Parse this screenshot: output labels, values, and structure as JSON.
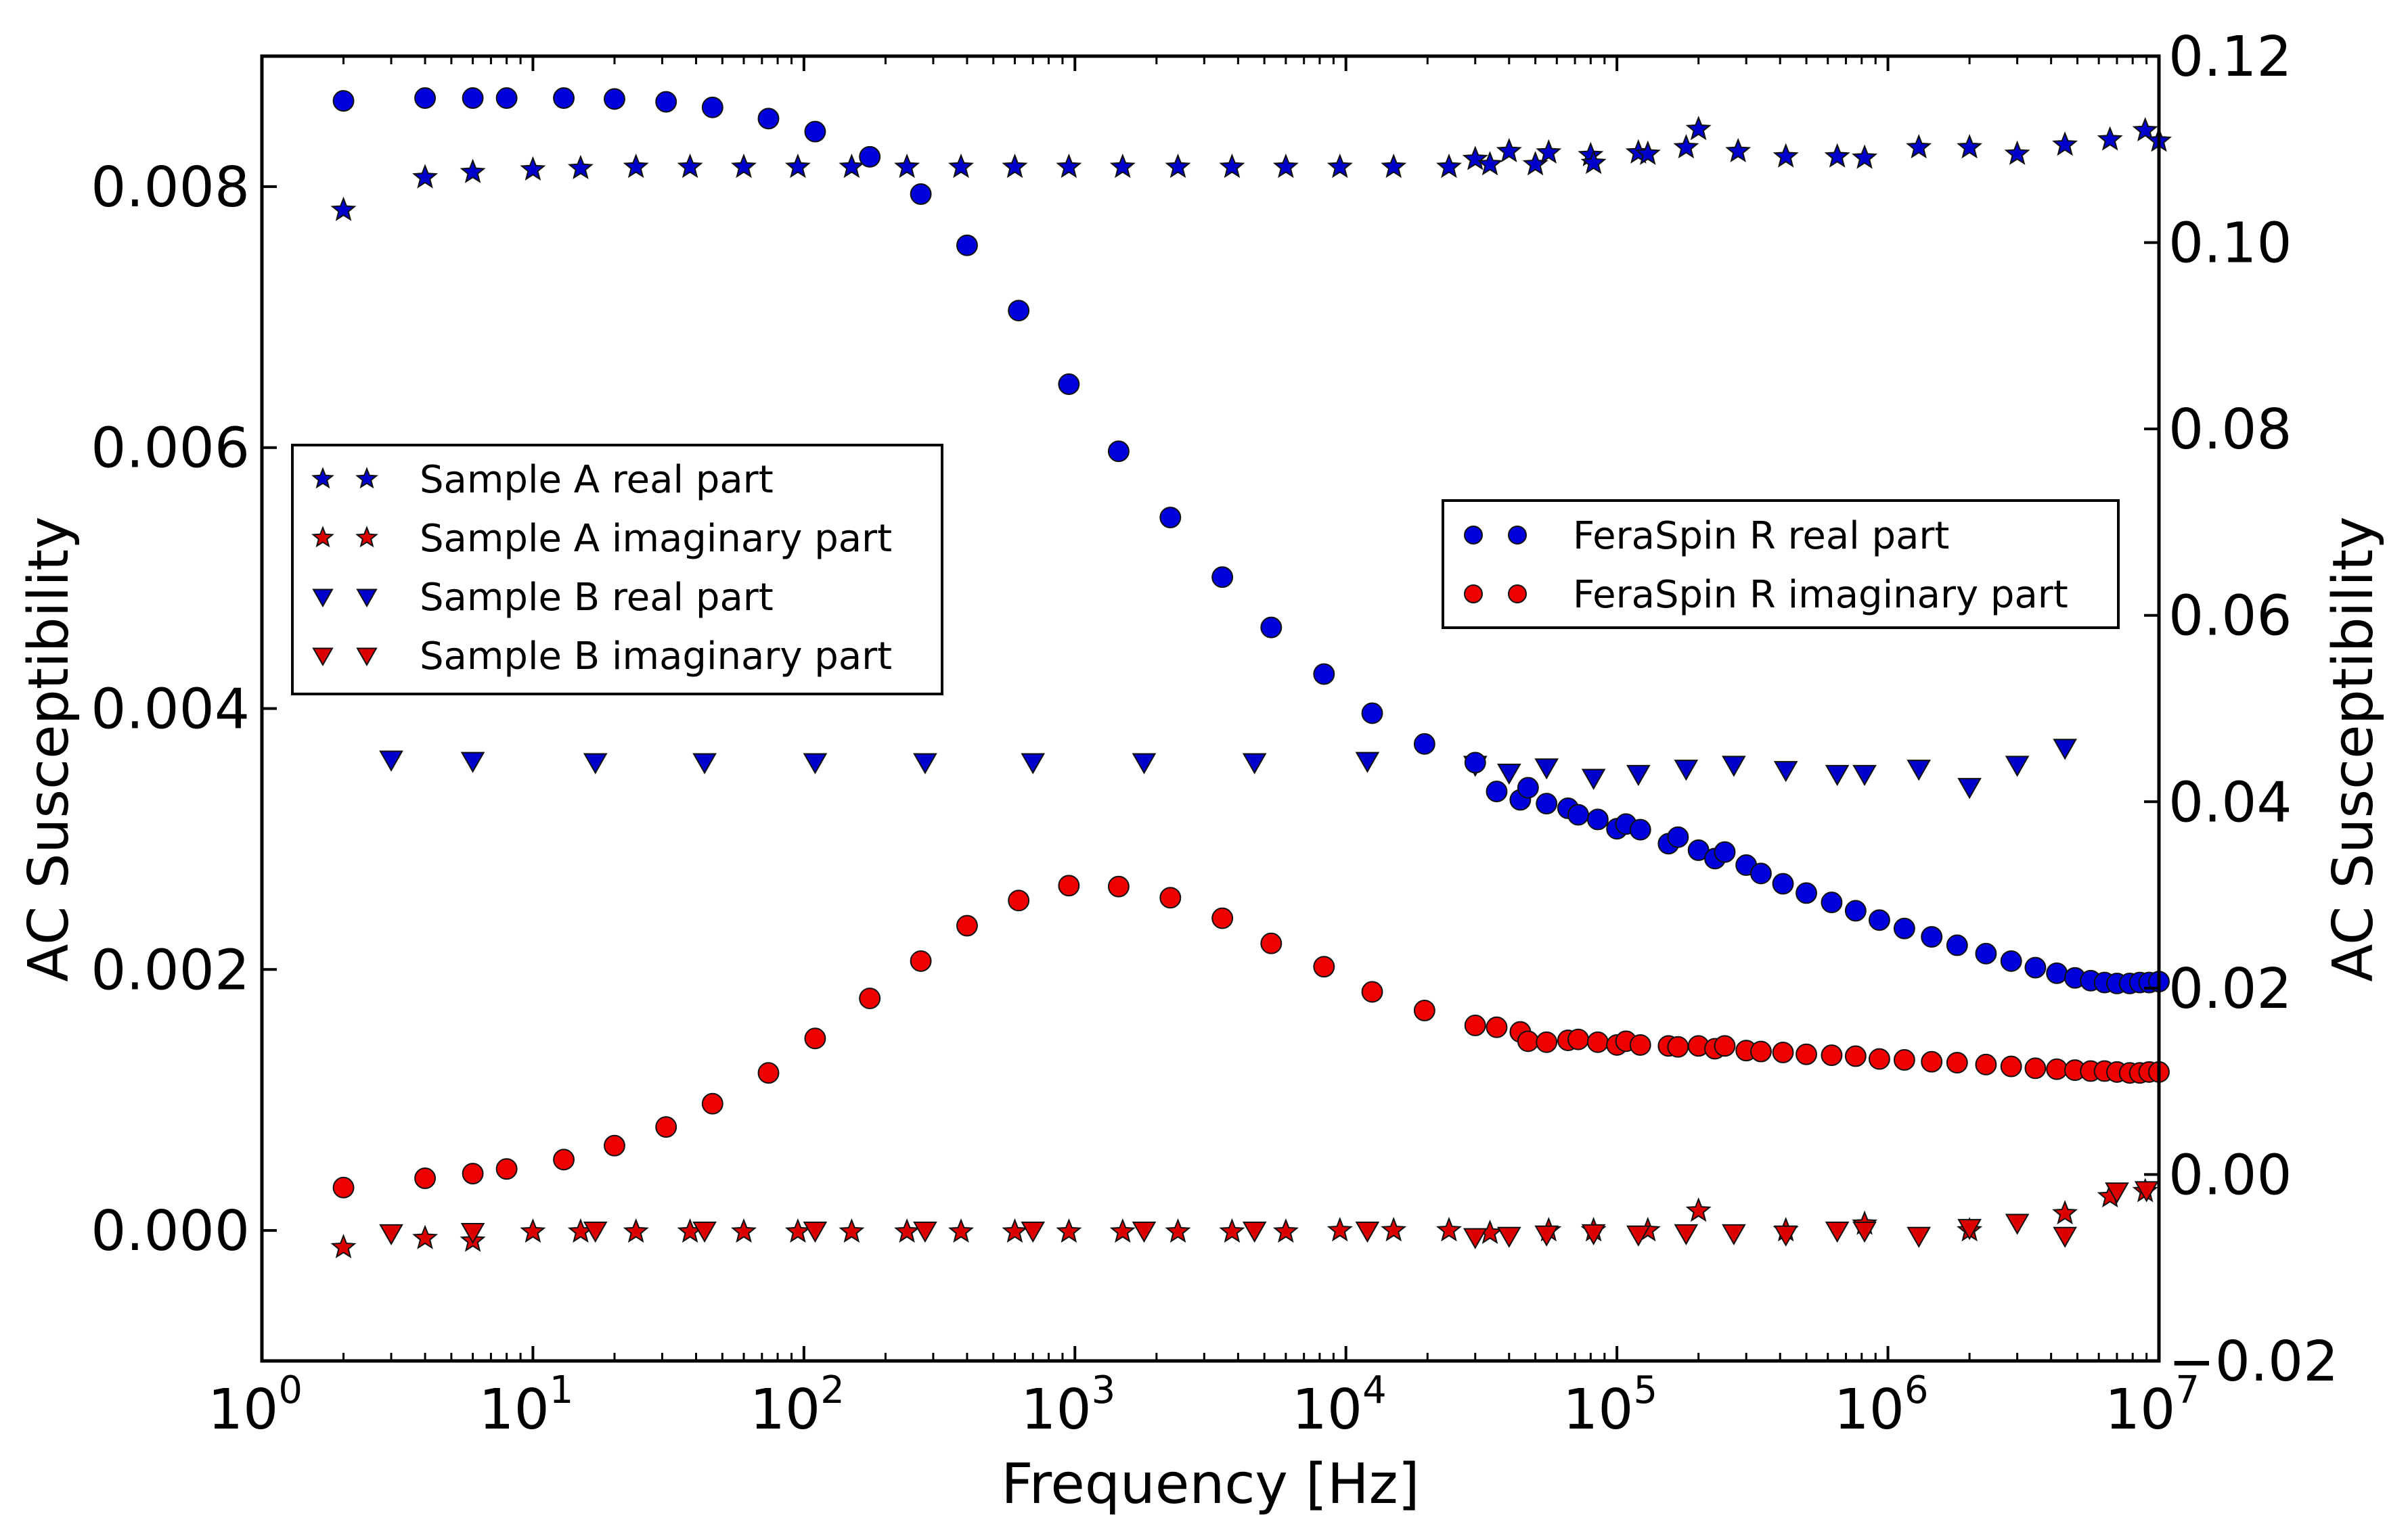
{
  "chart_data": {
    "type": "scatter",
    "title": "",
    "xlabel": "Frequency [Hz]",
    "ylabel_left": "AC Susceptibility",
    "ylabel_right": "AC Susceptibility",
    "xscale": "log",
    "xlim": [
      1,
      10000000
    ],
    "ylim_left": [
      -0.001,
      0.009
    ],
    "ylim_right": [
      -0.02,
      0.12
    ],
    "x_ticks": [
      {
        "value": 1,
        "base": "10",
        "exp": "0"
      },
      {
        "value": 10,
        "base": "10",
        "exp": "1"
      },
      {
        "value": 100,
        "base": "10",
        "exp": "2"
      },
      {
        "value": 1000,
        "base": "10",
        "exp": "3"
      },
      {
        "value": 10000,
        "base": "10",
        "exp": "4"
      },
      {
        "value": 100000,
        "base": "10",
        "exp": "5"
      },
      {
        "value": 1000000,
        "base": "10",
        "exp": "6"
      },
      {
        "value": 10000000,
        "base": "10",
        "exp": "7"
      }
    ],
    "y_ticks_left": [
      {
        "value": 0.0,
        "label": "0.000"
      },
      {
        "value": 0.002,
        "label": "0.002"
      },
      {
        "value": 0.004,
        "label": "0.004"
      },
      {
        "value": 0.006,
        "label": "0.006"
      },
      {
        "value": 0.008,
        "label": "0.008"
      }
    ],
    "y_ticks_right": [
      {
        "value": -0.02,
        "label": "−0.02"
      },
      {
        "value": 0.0,
        "label": "0.00"
      },
      {
        "value": 0.02,
        "label": "0.02"
      },
      {
        "value": 0.04,
        "label": "0.04"
      },
      {
        "value": 0.06,
        "label": "0.06"
      },
      {
        "value": 0.08,
        "label": "0.08"
      },
      {
        "value": 0.1,
        "label": "0.10"
      },
      {
        "value": 0.12,
        "label": "0.12"
      }
    ],
    "legend_left": {
      "placement": "center-left",
      "entries": [
        {
          "series": "sampleA_real",
          "label": "Sample A real part"
        },
        {
          "series": "sampleA_imag",
          "label": "Sample A imaginary part"
        },
        {
          "series": "sampleB_real",
          "label": "Sample B real part"
        },
        {
          "series": "sampleB_imag",
          "label": "Sample B imaginary part"
        }
      ]
    },
    "legend_right": {
      "placement": "center-right",
      "entries": [
        {
          "series": "feraspin_real",
          "label": "FeraSpin R real part"
        },
        {
          "series": "feraspin_imag",
          "label": "FeraSpin R imaginary part"
        }
      ]
    },
    "series": [
      {
        "id": "sampleA_real",
        "name": "Sample A real part",
        "axis": "left",
        "marker": "star",
        "color": "#0000cc",
        "x": [
          2,
          4,
          6,
          10,
          15,
          24,
          38,
          60,
          95,
          150,
          240,
          380,
          600,
          950,
          1500,
          2400,
          3800,
          6000,
          9500,
          15000,
          24000,
          30000,
          34000,
          40000,
          50000,
          56000,
          80000,
          82000,
          120000,
          130000,
          180000,
          200000,
          280000,
          420000,
          650000,
          820000,
          1300000,
          2000000,
          3000000,
          4500000,
          6600000,
          8900000,
          10000000
        ],
        "y": [
          0.00782,
          0.00807,
          0.00811,
          0.00813,
          0.00814,
          0.00815,
          0.00815,
          0.00815,
          0.00815,
          0.00815,
          0.00815,
          0.00815,
          0.00815,
          0.00815,
          0.00815,
          0.00815,
          0.00815,
          0.00815,
          0.00815,
          0.00815,
          0.00815,
          0.00821,
          0.00817,
          0.00827,
          0.00817,
          0.00826,
          0.00824,
          0.00818,
          0.00826,
          0.00825,
          0.0083,
          0.00844,
          0.00827,
          0.00823,
          0.00823,
          0.00822,
          0.0083,
          0.0083,
          0.00825,
          0.00832,
          0.00836,
          0.00843,
          0.00835
        ]
      },
      {
        "id": "sampleA_imag",
        "name": "Sample A imaginary part",
        "axis": "left",
        "marker": "star",
        "color": "#dd0000",
        "x": [
          2,
          4,
          6,
          10,
          15,
          24,
          38,
          60,
          95,
          150,
          240,
          380,
          600,
          950,
          1500,
          2400,
          3800,
          6000,
          9500,
          15000,
          24000,
          34000,
          56000,
          82000,
          130000,
          200000,
          420000,
          820000,
          2000000,
          4500000,
          6600000,
          8900000
        ],
        "y": [
          -0.00013,
          -6e-05,
          -8e-05,
          -1e-05,
          -1e-05,
          -1e-05,
          -1e-05,
          -1e-05,
          -1e-05,
          -1e-05,
          -1e-05,
          -1e-05,
          -1e-05,
          -1e-05,
          -1e-05,
          -1e-05,
          -1e-05,
          -1e-05,
          0.0,
          0.0,
          0.0,
          -2e-05,
          0.0,
          0.0,
          0.0,
          0.00015,
          0.0,
          5e-05,
          0.0,
          0.00013,
          0.00026,
          0.0003
        ]
      },
      {
        "id": "sampleB_real",
        "name": "Sample B real part",
        "axis": "left",
        "marker": "triangle-down",
        "color": "#0000cc",
        "x": [
          3,
          6,
          17,
          43,
          110,
          280,
          700,
          1800,
          4600,
          12000,
          30000,
          40000,
          55000,
          82000,
          120000,
          180000,
          270000,
          420000,
          650000,
          820000,
          1300000,
          2000000,
          3000000,
          4500000
        ],
        "y": [
          0.00361,
          0.0036,
          0.00359,
          0.00359,
          0.00359,
          0.00359,
          0.00359,
          0.00359,
          0.00359,
          0.0036,
          0.00357,
          0.00351,
          0.00355,
          0.00347,
          0.0035,
          0.00354,
          0.00357,
          0.00353,
          0.0035,
          0.0035,
          0.00354,
          0.0034,
          0.00357,
          0.0037
        ]
      },
      {
        "id": "sampleB_imag",
        "name": "Sample B imaginary part",
        "axis": "left",
        "marker": "triangle-down",
        "color": "#dd0000",
        "x": [
          3,
          6,
          17,
          43,
          110,
          280,
          700,
          1800,
          4600,
          12000,
          30000,
          40000,
          55000,
          82000,
          120000,
          180000,
          270000,
          420000,
          650000,
          820000,
          1300000,
          2000000,
          3000000,
          4500000,
          7000000,
          9000000
        ],
        "y": [
          -2e-05,
          -1e-05,
          0.0,
          0.0,
          0.0,
          0.0,
          0.0,
          0.0,
          0.0,
          0.0,
          -5e-05,
          -4e-05,
          -3e-05,
          -2e-05,
          -3e-05,
          -2e-05,
          -2e-05,
          -3e-05,
          0.0,
          0.0,
          -4e-05,
          2e-05,
          6e-05,
          -4e-05,
          0.0003,
          0.00031
        ]
      },
      {
        "id": "feraspin_real",
        "name": "FeraSpin R real part",
        "axis": "right",
        "marker": "circle",
        "color": "#0000dd",
        "x": [
          2,
          4,
          6,
          8,
          13,
          20,
          31,
          46,
          74,
          110,
          175,
          270,
          400,
          620,
          950,
          1450,
          2250,
          3500,
          5300,
          8300,
          12500,
          19500,
          30000,
          36000,
          44000,
          47000,
          55000,
          66000,
          72000,
          85000,
          100000,
          108000,
          122000,
          155000,
          168000,
          200000,
          230000,
          250000,
          300000,
          340000,
          410000,
          500000,
          620000,
          760000,
          930000,
          1150000,
          1450000,
          1800000,
          2300000,
          2850000,
          3500000,
          4200000,
          4900000,
          5600000,
          6300000,
          7000000,
          7800000,
          8500000,
          9200000,
          10000000
        ],
        "y": [
          0.1152,
          0.1155,
          0.1155,
          0.1155,
          0.1155,
          0.1154,
          0.1151,
          0.1145,
          0.1133,
          0.1119,
          0.1092,
          0.1052,
          0.0997,
          0.0927,
          0.0848,
          0.0776,
          0.0705,
          0.0641,
          0.0587,
          0.0537,
          0.0495,
          0.0462,
          0.0442,
          0.0411,
          0.0402,
          0.0415,
          0.0398,
          0.0393,
          0.0386,
          0.0381,
          0.0371,
          0.0376,
          0.037,
          0.0355,
          0.0362,
          0.0348,
          0.0339,
          0.0346,
          0.0332,
          0.0323,
          0.0312,
          0.0302,
          0.0292,
          0.0283,
          0.0273,
          0.0264,
          0.0255,
          0.0246,
          0.0237,
          0.0229,
          0.0222,
          0.0216,
          0.0211,
          0.0208,
          0.0206,
          0.0205,
          0.0205,
          0.0206,
          0.0206,
          0.0207
        ]
      },
      {
        "id": "feraspin_imag",
        "name": "FeraSpin R imaginary part",
        "axis": "right",
        "marker": "circle",
        "color": "#ee0000",
        "x": [
          2,
          4,
          6,
          8,
          13,
          20,
          31,
          46,
          74,
          110,
          175,
          270,
          400,
          620,
          950,
          1450,
          2250,
          3500,
          5300,
          8300,
          12500,
          19500,
          30000,
          36000,
          44000,
          47000,
          55000,
          66000,
          72000,
          85000,
          100000,
          108000,
          122000,
          155000,
          168000,
          200000,
          230000,
          250000,
          300000,
          340000,
          410000,
          500000,
          620000,
          760000,
          930000,
          1150000,
          1450000,
          1800000,
          2300000,
          2850000,
          3500000,
          4200000,
          4900000,
          5600000,
          6300000,
          7000000,
          7800000,
          8500000,
          9200000,
          10000000
        ],
        "y": [
          -0.0014,
          -0.0004,
          0.0001,
          0.0006,
          0.0016,
          0.0031,
          0.0051,
          0.0076,
          0.0109,
          0.0146,
          0.0189,
          0.0229,
          0.0267,
          0.0294,
          0.031,
          0.0309,
          0.0297,
          0.0275,
          0.0248,
          0.0223,
          0.0196,
          0.0176,
          0.016,
          0.0158,
          0.0153,
          0.0143,
          0.0142,
          0.0144,
          0.0145,
          0.0142,
          0.0139,
          0.0143,
          0.0139,
          0.0138,
          0.0137,
          0.0138,
          0.0135,
          0.0138,
          0.0133,
          0.0132,
          0.0131,
          0.0129,
          0.0128,
          0.0127,
          0.0124,
          0.0123,
          0.0121,
          0.012,
          0.0118,
          0.0116,
          0.0114,
          0.0113,
          0.0112,
          0.0111,
          0.0111,
          0.011,
          0.0109,
          0.0109,
          0.011,
          0.011
        ]
      }
    ]
  }
}
